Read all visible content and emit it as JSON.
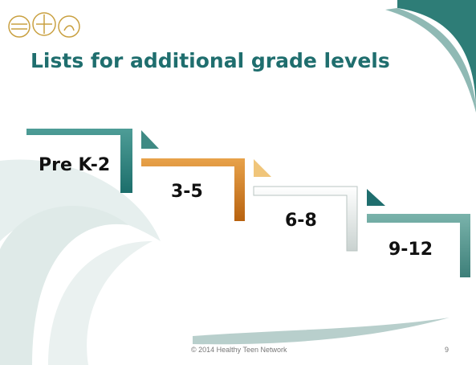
{
  "slide": {
    "title": "Lists for additional grade levels",
    "steps": [
      "Pre K-2",
      "3-5",
      "6-8",
      "9-12"
    ],
    "footer": "© 2014  Healthy Teen Network",
    "page_number": 9
  }
}
